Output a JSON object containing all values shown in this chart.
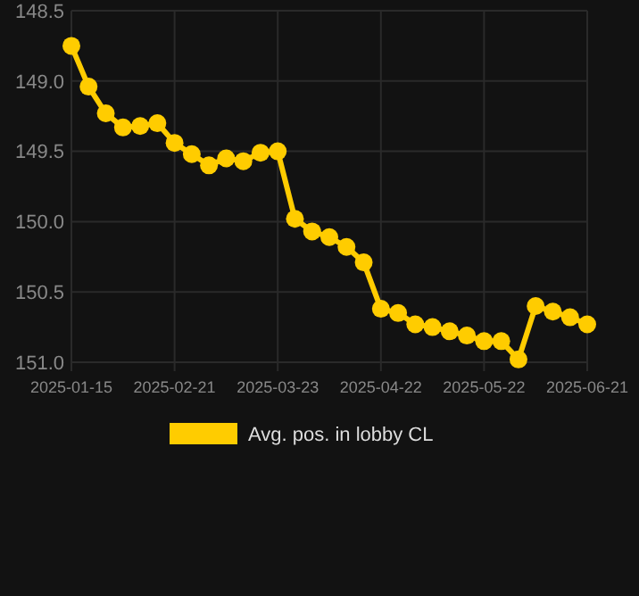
{
  "chart_data": {
    "type": "line",
    "categories": [
      "2025-01-15",
      null,
      null,
      null,
      null,
      null,
      "2025-02-21",
      null,
      null,
      null,
      null,
      null,
      "2025-03-23",
      null,
      null,
      null,
      null,
      null,
      "2025-04-22",
      null,
      null,
      null,
      null,
      null,
      "2025-05-22",
      null,
      null,
      null,
      null,
      null,
      "2025-06-21"
    ],
    "series": [
      {
        "name": "Avg. pos. in lobby CL",
        "color": "#ffcc00",
        "values": [
          148.75,
          149.04,
          149.23,
          149.33,
          149.32,
          149.3,
          149.44,
          149.52,
          149.6,
          149.55,
          149.57,
          149.51,
          149.5,
          149.98,
          150.07,
          150.11,
          150.18,
          150.29,
          150.62,
          150.65,
          150.73,
          150.75,
          150.78,
          150.81,
          150.85,
          150.85,
          150.98,
          150.6,
          150.64,
          150.68,
          150.73
        ]
      }
    ],
    "ylim": [
      151.0,
      148.5
    ],
    "yticks": [
      {
        "value": 148.5,
        "label": "148.5"
      },
      {
        "value": 149,
        "label": "149.0"
      },
      {
        "value": 149.5,
        "label": "149.5"
      },
      {
        "value": 150,
        "label": "150.0"
      },
      {
        "value": 150.5,
        "label": "150.5"
      },
      {
        "value": 151,
        "label": "151.0"
      }
    ],
    "grid": true,
    "legend": "bottom",
    "marker": "circle",
    "line_style": "solid"
  }
}
